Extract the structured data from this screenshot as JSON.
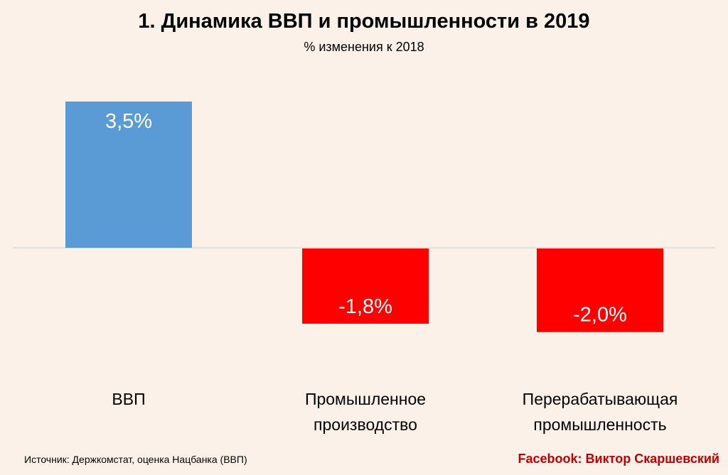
{
  "title": "1. Динамика ВВП и промышленности в 2019",
  "subtitle": "% изменения к 2018",
  "chart_data": {
    "type": "bar",
    "title": "1. Динамика ВВП и промышленности в 2019",
    "subtitle": "% изменения к 2018",
    "categories": [
      [
        "ВВП"
      ],
      [
        "Промышленное",
        "производство"
      ],
      [
        "Перерабатывающая",
        "промышленность"
      ]
    ],
    "values": [
      3.5,
      -1.8,
      -2.0
    ],
    "value_labels": [
      "3,5%",
      "-1,8%",
      "-2,0%"
    ],
    "colors": [
      "#5b9bd5",
      "#ff0000",
      "#ff0000"
    ],
    "ylim": [
      -2.1,
      3.5
    ],
    "grid": false,
    "legend": "none"
  },
  "footer": {
    "source": "Источник: Держкомстат, оценка Нацбанка (ВВП)",
    "credit": "Facebook: Виктор Скаршевский"
  }
}
